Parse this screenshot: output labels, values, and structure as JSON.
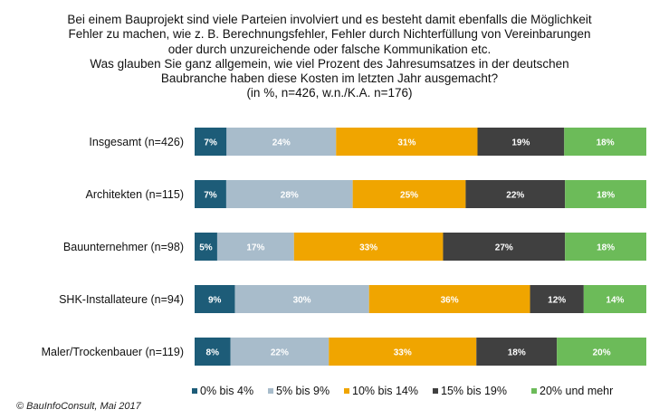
{
  "chart_data": {
    "type": "bar",
    "orientation": "horizontal",
    "stacked": true,
    "title_lines": [
      "Bei einem Bauprojekt sind viele Parteien involviert und es besteht damit ebenfalls die Möglichkeit",
      "Fehler zu machen, wie z. B. Berechnungsfehler,  Fehler durch Nichterfüllung von Vereinbarungen",
      "oder durch unzureichende  oder falsche Kommunikation etc.",
      "Was glauben Sie ganz allgemein,  wie viel Prozent des Jahresumsatzes  in der deutschen",
      "Baubranche haben diese Kosten im letzten Jahr ausgemacht?",
      "(in %, n=426, w.n./K.A. n=176)"
    ],
    "categories": [
      "Insgesamt (n=426)",
      "Architekten (n=115)",
      "Bauunternehmer (n=98)",
      "SHK-Installateure (n=94)",
      "Maler/Trockenbauer (n=119)"
    ],
    "series": [
      {
        "name": "0% bis 4%",
        "color": "#1d5c78",
        "values": [
          7,
          7,
          5,
          9,
          8
        ]
      },
      {
        "name": "5% bis 9%",
        "color": "#a8bccb",
        "values": [
          24,
          28,
          17,
          30,
          22
        ]
      },
      {
        "name": "10% bis 14%",
        "color": "#f0a500",
        "values": [
          31,
          25,
          33,
          36,
          33
        ]
      },
      {
        "name": "15% bis 19%",
        "color": "#404040",
        "values": [
          19,
          22,
          27,
          12,
          18
        ]
      },
      {
        "name": "20% und mehr",
        "color": "#6cbb59",
        "values": [
          18,
          18,
          18,
          14,
          20
        ]
      }
    ],
    "unit": "%",
    "legend_position": "bottom",
    "grid": false
  },
  "footer": "© BauInfoConsult, Mai 2017"
}
